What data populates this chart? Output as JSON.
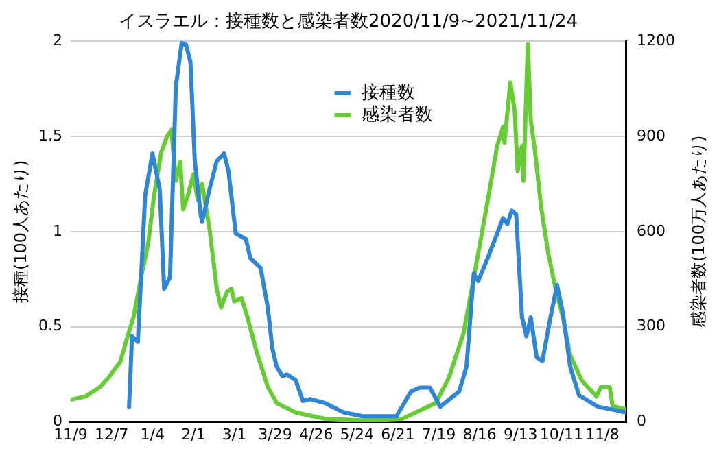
{
  "chart_data": {
    "type": "line",
    "title": "イスラエル：接種数と感染者数2020/11/9~2021/11/24",
    "ylabel": "接種(100人あたり)",
    "y2label": "感染者数(100万人あたり)",
    "xlim": [
      "2020-11-09",
      "2021-11-24"
    ],
    "xticks": [
      {
        "value": "2020-11-09",
        "label": "11/9"
      },
      {
        "value": "2020-12-07",
        "label": "12/7"
      },
      {
        "value": "2021-01-04",
        "label": "1/4"
      },
      {
        "value": "2021-02-01",
        "label": "2/1"
      },
      {
        "value": "2021-03-01",
        "label": "3/1"
      },
      {
        "value": "2021-03-29",
        "label": "3/29"
      },
      {
        "value": "2021-04-26",
        "label": "4/26"
      },
      {
        "value": "2021-05-24",
        "label": "5/24"
      },
      {
        "value": "2021-06-21",
        "label": "6/21"
      },
      {
        "value": "2021-07-19",
        "label": "7/19"
      },
      {
        "value": "2021-08-16",
        "label": "8/16"
      },
      {
        "value": "2021-09-13",
        "label": "9/13"
      },
      {
        "value": "2021-10-11",
        "label": "10/11"
      },
      {
        "value": "2021-11-08",
        "label": "11/8"
      }
    ],
    "ylim": [
      0,
      2
    ],
    "yticks": [
      0,
      0.5,
      1,
      1.5,
      2
    ],
    "y2lim": [
      0,
      1200
    ],
    "y2ticks": [
      0,
      300,
      600,
      900,
      1200
    ],
    "grid": "y",
    "legend": "top",
    "marker": "none",
    "line_style": "solid",
    "series": [
      {
        "name": "接種数",
        "color": "#2f86d6",
        "x": [
          "2020-12-19",
          "2020-12-21",
          "2020-12-25",
          "2020-12-30",
          "2021-01-04",
          "2021-01-09",
          "2021-01-12",
          "2021-01-16",
          "2021-01-20",
          "2021-01-24",
          "2021-01-27",
          "2021-01-30",
          "2021-02-02",
          "2021-02-06",
          "2021-02-07",
          "2021-02-12",
          "2021-02-17",
          "2021-02-22",
          "2021-02-25",
          "2021-03-02",
          "2021-03-09",
          "2021-03-12",
          "2021-03-19",
          "2021-03-24",
          "2021-03-27",
          "2021-03-30",
          "2021-04-03",
          "2021-04-06",
          "2021-04-12",
          "2021-04-17",
          "2021-04-22",
          "2021-05-02",
          "2021-05-15",
          "2021-05-28",
          "2021-06-20",
          "2021-06-30",
          "2021-07-06",
          "2021-07-13",
          "2021-07-20",
          "2021-08-02",
          "2021-08-07",
          "2021-08-12",
          "2021-08-15",
          "2021-08-22",
          "2021-08-28",
          "2021-09-01",
          "2021-09-04",
          "2021-09-07",
          "2021-09-10",
          "2021-09-14",
          "2021-09-17",
          "2021-09-20",
          "2021-09-24",
          "2021-09-28",
          "2021-10-03",
          "2021-10-08",
          "2021-10-12",
          "2021-10-17",
          "2021-10-23",
          "2021-11-05",
          "2021-11-18",
          "2021-11-24"
        ],
        "values": [
          0.08,
          0.45,
          0.42,
          1.19,
          1.41,
          1.22,
          0.7,
          0.76,
          1.76,
          1.99,
          1.98,
          1.89,
          1.37,
          1.09,
          1.05,
          1.22,
          1.37,
          1.41,
          1.32,
          0.99,
          0.96,
          0.86,
          0.81,
          0.6,
          0.39,
          0.29,
          0.24,
          0.25,
          0.22,
          0.11,
          0.12,
          0.1,
          0.05,
          0.03,
          0.03,
          0.16,
          0.18,
          0.18,
          0.08,
          0.16,
          0.29,
          0.78,
          0.74,
          0.87,
          0.99,
          1.07,
          1.04,
          1.11,
          1.09,
          0.55,
          0.45,
          0.55,
          0.34,
          0.32,
          0.53,
          0.72,
          0.57,
          0.29,
          0.14,
          0.08,
          0.06,
          0.05
        ]
      },
      {
        "name": "感染者数",
        "color": "#66cc33",
        "axis": "y2",
        "x": [
          "2020-11-09",
          "2020-11-19",
          "2020-11-29",
          "2020-12-05",
          "2020-12-13",
          "2020-12-18",
          "2020-12-22",
          "2020-12-27",
          "2021-01-01",
          "2021-01-05",
          "2021-01-10",
          "2021-01-14",
          "2021-01-17",
          "2021-01-20",
          "2021-01-23",
          "2021-01-25",
          "2021-01-28",
          "2021-02-01",
          "2021-02-04",
          "2021-02-07",
          "2021-02-12",
          "2021-02-17",
          "2021-02-20",
          "2021-02-24",
          "2021-02-27",
          "2021-03-01",
          "2021-03-06",
          "2021-03-10",
          "2021-03-17",
          "2021-03-24",
          "2021-03-30",
          "2021-04-12",
          "2021-05-02",
          "2021-05-28",
          "2021-06-24",
          "2021-07-17",
          "2021-07-26",
          "2021-08-05",
          "2021-08-15",
          "2021-08-22",
          "2021-08-28",
          "2021-09-01",
          "2021-09-02",
          "2021-09-06",
          "2021-09-09",
          "2021-09-11",
          "2021-09-14",
          "2021-09-15",
          "2021-09-18",
          "2021-09-20",
          "2021-09-23",
          "2021-09-27",
          "2021-10-02",
          "2021-10-07",
          "2021-10-12",
          "2021-10-17",
          "2021-10-25",
          "2021-11-04",
          "2021-11-07",
          "2021-11-13",
          "2021-11-15",
          "2021-11-24"
        ],
        "values": [
          70,
          80,
          110,
          140,
          190,
          270,
          330,
          450,
          560,
          710,
          850,
          900,
          920,
          760,
          820,
          670,
          710,
          780,
          700,
          750,
          610,
          420,
          360,
          410,
          420,
          380,
          390,
          330,
          210,
          110,
          60,
          30,
          10,
          5,
          10,
          60,
          140,
          280,
          530,
          710,
          870,
          930,
          880,
          1070,
          980,
          790,
          870,
          760,
          1190,
          950,
          850,
          680,
          530,
          420,
          330,
          210,
          130,
          80,
          110,
          110,
          50,
          40
        ]
      }
    ]
  }
}
